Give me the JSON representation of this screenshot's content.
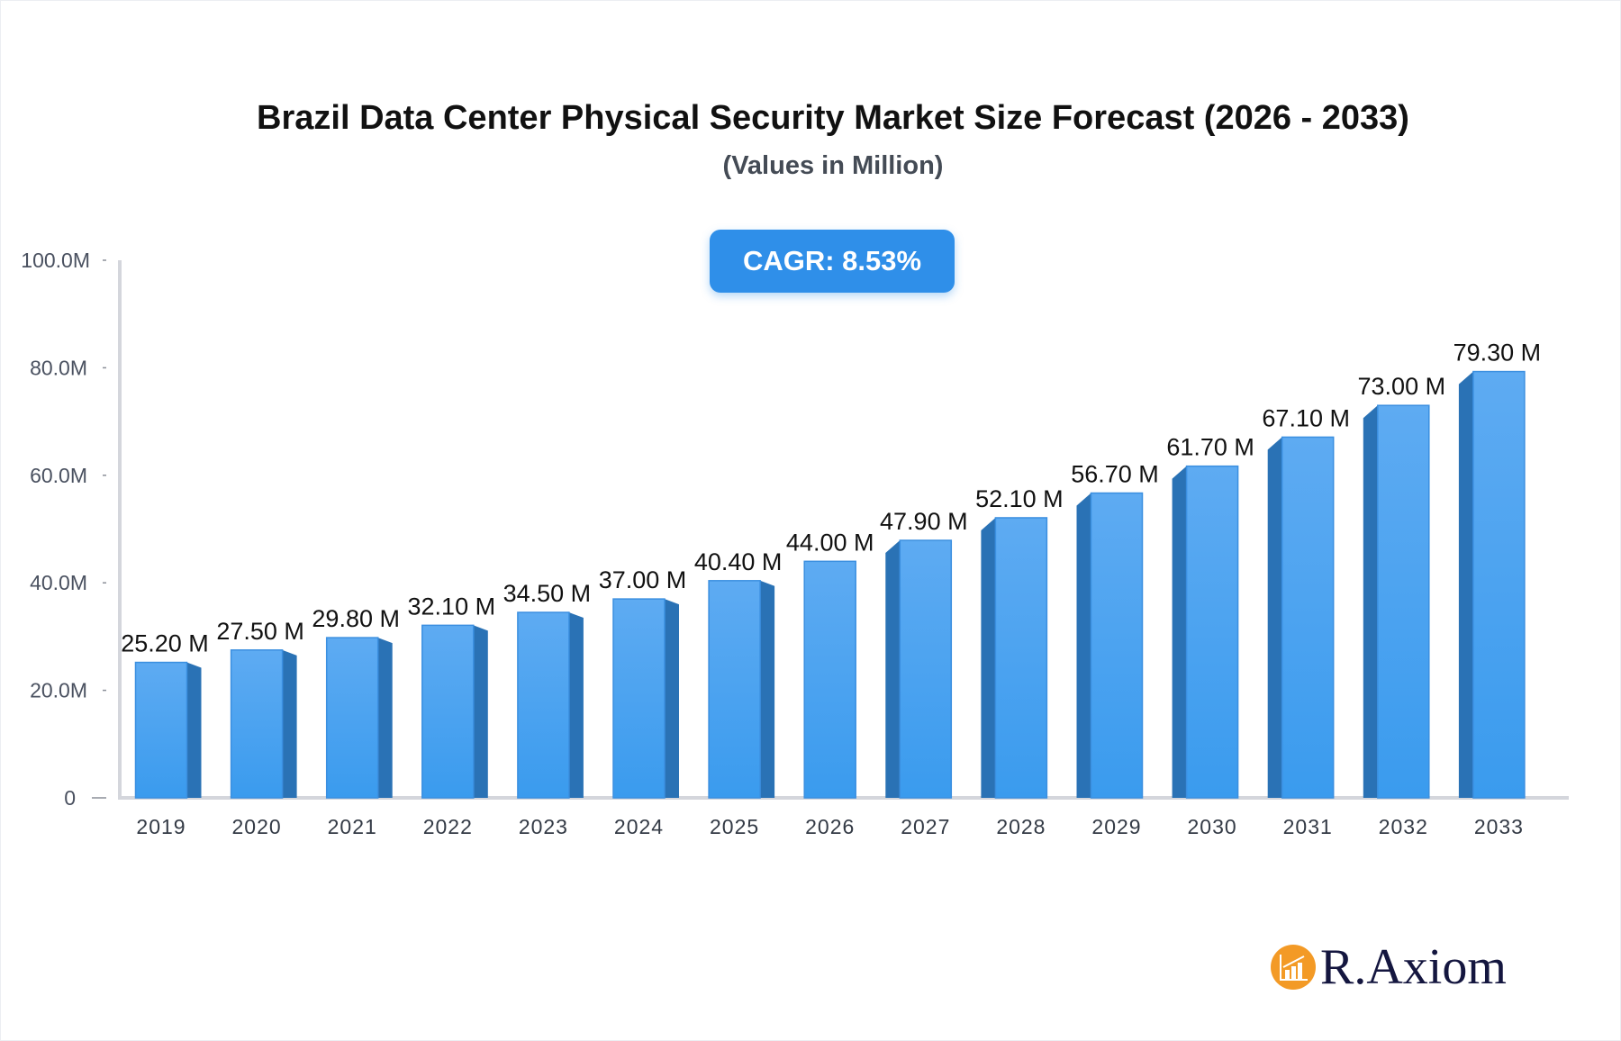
{
  "chart_data": {
    "type": "bar",
    "title": "Brazil Data Center Physical Security Market Size Forecast (2026 - 2033)",
    "subtitle": "(Values in Million)",
    "categories": [
      "2019",
      "2020",
      "2021",
      "2022",
      "2023",
      "2024",
      "2025",
      "2026",
      "2027",
      "2028",
      "2029",
      "2030",
      "2031",
      "2032",
      "2033"
    ],
    "values": [
      25.2,
      27.5,
      29.8,
      32.1,
      34.5,
      37.0,
      40.4,
      44.0,
      47.9,
      52.1,
      56.7,
      61.7,
      67.1,
      73.0,
      79.3
    ],
    "data_labels": [
      "25.20 M",
      "27.50 M",
      "29.80 M",
      "32.10 M",
      "34.50 M",
      "37.00 M",
      "40.40 M",
      "44.00 M",
      "47.90 M",
      "52.10 M",
      "56.70 M",
      "61.70 M",
      "67.10 M",
      "73.00 M",
      "79.30 M"
    ],
    "ylim": [
      0,
      100
    ],
    "yticks": [
      0,
      20,
      40,
      60,
      80,
      100
    ],
    "ytick_labels": [
      "0",
      "20.0M",
      "40.0M",
      "60.0M",
      "80.0M",
      "100.0M"
    ],
    "xlabel": "",
    "ylabel": "",
    "grid": false,
    "colors": {
      "bar_front": "#4aa3f0",
      "bar_side": "#2a72b5",
      "axis": "#d4d6dc"
    }
  },
  "badge": {
    "cagr": "CAGR: 8.53%"
  },
  "logo": {
    "text": "R.Axiom",
    "color": "#f39a26"
  }
}
